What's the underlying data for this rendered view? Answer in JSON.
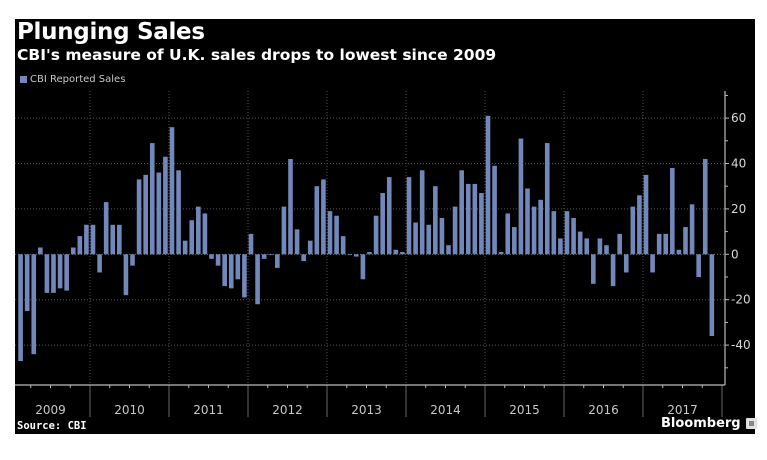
{
  "header": {
    "title": "Plunging Sales",
    "subtitle": "CBI's measure of U.K. sales drops to lowest since 2009"
  },
  "footer": {
    "source": "Source: CBI",
    "brand": "Bloomberg",
    "brand_icon": "bloomberg-chart-icon"
  },
  "colors": {
    "background": "#000000",
    "bar": "#7388BA",
    "text": "#ffffff",
    "grid": "#555555",
    "axis": "#bbbbbb"
  },
  "chart_data": {
    "type": "bar",
    "title": "Plunging Sales",
    "subtitle": "CBI's measure of U.K. sales drops to lowest since 2009",
    "xlabel": "",
    "ylabel": "",
    "legend": {
      "entries": [
        "CBI Reported Sales"
      ],
      "placement": "top-left"
    },
    "y_axis_side": "right",
    "ylim": [
      -55,
      72
    ],
    "y_ticks": [
      60,
      40,
      20,
      0,
      -20,
      -40
    ],
    "y_tick_labels": [
      "60",
      "40",
      "20",
      "0",
      "-20",
      "-40"
    ],
    "grid": true,
    "x_start": "2009-01",
    "x_end": "2017-12",
    "year_labels": [
      "2009",
      "2010",
      "2011",
      "2012",
      "2013",
      "2014",
      "2015",
      "2016",
      "2017"
    ],
    "series": [
      {
        "name": "CBI Reported Sales",
        "start": "2009-02",
        "frequency": "monthly",
        "values": [
          -47,
          -25,
          -44,
          3,
          -17,
          -17,
          -15,
          -16,
          3,
          8,
          13,
          13,
          -8,
          23,
          13,
          13,
          -18,
          -5,
          33,
          35,
          49,
          36,
          43,
          56,
          37,
          6,
          15,
          21,
          18,
          -2,
          -5,
          -14,
          -15,
          -11,
          -19,
          9,
          -22,
          -2,
          0,
          -6,
          21,
          42,
          11,
          -3,
          6,
          30,
          33,
          19,
          17,
          8,
          0,
          -1,
          -11,
          1,
          17,
          27,
          34,
          2,
          1,
          34,
          14,
          37,
          13,
          30,
          16,
          4,
          21,
          37,
          31,
          31,
          27,
          61,
          39,
          1,
          18,
          12,
          51,
          29,
          21,
          24,
          49,
          19,
          7,
          19,
          16,
          10,
          7,
          -13,
          7,
          4,
          -14,
          9,
          -8,
          21,
          26,
          35,
          -8,
          9,
          9,
          38,
          2,
          12,
          22,
          -10,
          42,
          -36
        ]
      }
    ]
  }
}
